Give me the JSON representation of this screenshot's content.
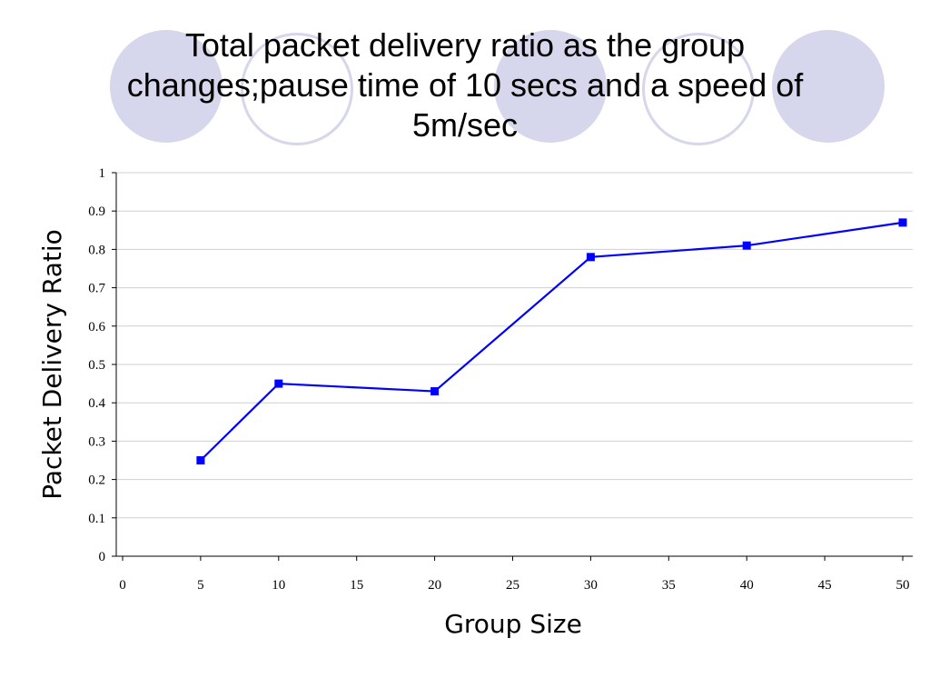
{
  "slide": {
    "title_lines": [
      "Total packet delivery ratio as the group",
      "changes;pause time of 10 secs and a speed of",
      "5m/sec"
    ]
  },
  "chart_data": {
    "type": "line",
    "xlabel": "Group Size",
    "ylabel": "Packet Delivery Ratio",
    "xlim": [
      0,
      50
    ],
    "ylim": [
      0,
      1
    ],
    "x_ticks": [
      0,
      5,
      10,
      15,
      20,
      25,
      30,
      35,
      40,
      45,
      50
    ],
    "y_ticks": [
      0,
      0.1,
      0.2,
      0.3,
      0.4,
      0.5,
      0.6,
      0.7,
      0.8,
      0.9,
      1
    ],
    "grid": "horizontal",
    "legend": "none",
    "series": [
      {
        "x": [
          5,
          10,
          20,
          30,
          40,
          50
        ],
        "values": [
          0.25,
          0.45,
          0.43,
          0.78,
          0.81,
          0.87
        ],
        "color": "#0000ff",
        "marker": "square"
      }
    ]
  }
}
